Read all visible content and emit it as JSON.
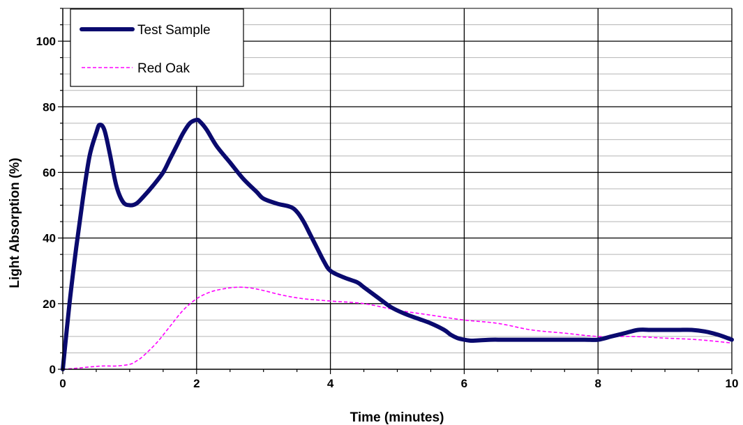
{
  "chart_data": {
    "type": "line",
    "title": "",
    "xlabel": "Time (minutes)",
    "ylabel": "Light Absorption (%)",
    "xlim": [
      0,
      10
    ],
    "ylim": [
      0,
      110
    ],
    "x_ticks": [
      "0",
      "2",
      "4",
      "6",
      "8",
      "10"
    ],
    "y_ticks": [
      "0",
      "20",
      "40",
      "60",
      "80",
      "100"
    ],
    "grid": {
      "major_horizontal": true,
      "minor_horizontal": true,
      "vertical": true
    },
    "legend_position": "top-left",
    "series": [
      {
        "name": "Test Sample",
        "color": "#0a0a6e",
        "style": "solid-thick",
        "x": [
          0,
          0.1,
          0.2,
          0.3,
          0.4,
          0.5,
          0.55,
          0.62,
          0.7,
          0.8,
          0.9,
          1.0,
          1.1,
          1.2,
          1.35,
          1.5,
          1.6,
          1.7,
          1.8,
          1.9,
          2.0,
          2.05,
          2.15,
          2.3,
          2.5,
          2.7,
          2.9,
          3.0,
          3.2,
          3.4,
          3.5,
          3.6,
          3.7,
          3.8,
          3.9,
          4.0,
          4.2,
          4.4,
          4.5,
          4.7,
          4.9,
          5.1,
          5.3,
          5.5,
          5.7,
          5.8,
          5.9,
          6.0,
          6.1,
          6.2,
          6.4,
          6.6,
          7.0,
          7.5,
          7.8,
          8.0,
          8.2,
          8.4,
          8.6,
          8.8,
          9.0,
          9.2,
          9.4,
          9.6,
          9.8,
          10.0
        ],
        "y": [
          0,
          20,
          37,
          52,
          65,
          72,
          74.5,
          73,
          66,
          56,
          51,
          50,
          50.5,
          52.5,
          56,
          60,
          64,
          68,
          72,
          75,
          76,
          75.5,
          73,
          68,
          63,
          58,
          54,
          52,
          50.5,
          49.5,
          48,
          45,
          41,
          37,
          33,
          30,
          28,
          26.5,
          25,
          22,
          19,
          17,
          15.5,
          14,
          12,
          10.5,
          9.5,
          9,
          8.7,
          8.8,
          9,
          9,
          9,
          9,
          9,
          9,
          10,
          11,
          12,
          12,
          12,
          12,
          12,
          11.5,
          10.5,
          9
        ]
      },
      {
        "name": "Red Oak",
        "color": "#ff00ff",
        "style": "dashed",
        "x": [
          0,
          0.2,
          0.4,
          0.6,
          0.8,
          1.0,
          1.1,
          1.2,
          1.4,
          1.6,
          1.8,
          2.0,
          2.2,
          2.4,
          2.6,
          2.8,
          3.0,
          3.3,
          3.6,
          4.0,
          4.5,
          5.0,
          5.5,
          6.0,
          6.5,
          7.0,
          7.5,
          8.0,
          8.5,
          9.0,
          9.5,
          10.0
        ],
        "y": [
          0,
          0.3,
          0.7,
          1,
          1,
          1.5,
          2.5,
          4,
          8,
          13,
          18,
          21.5,
          23.5,
          24.5,
          25,
          24.8,
          24,
          22.5,
          21.5,
          20.8,
          20,
          18,
          16.5,
          15,
          14,
          12,
          11,
          10,
          10,
          9.5,
          9,
          8
        ]
      }
    ]
  }
}
